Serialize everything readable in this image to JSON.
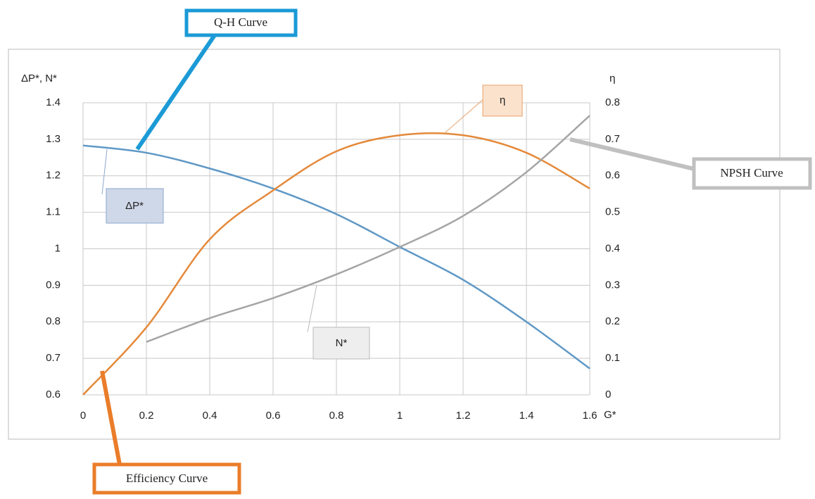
{
  "chart_data": {
    "type": "line",
    "ylabel": "ΔP*, N*",
    "y2label": "η",
    "xlabel": "G*",
    "x": [
      0,
      0.2,
      0.4,
      0.6,
      0.8,
      1.0,
      1.2,
      1.4,
      1.6
    ],
    "series": [
      {
        "name": "ΔP*",
        "color": "#5f98c6",
        "values": [
          1.283,
          1.263,
          1.22,
          1.165,
          1.095,
          1.005,
          0.915,
          0.8,
          0.672
        ]
      },
      {
        "name": "η",
        "color": "#e4893a",
        "axis": "y2",
        "values": [
          0,
          0.185,
          0.426,
          0.56,
          0.667,
          0.711,
          0.711,
          0.663,
          0.565
        ]
      },
      {
        "name": "N*",
        "color": "#a5a5a5",
        "values": [
          null,
          0.745,
          0.81,
          0.865,
          0.93,
          1.005,
          1.09,
          1.21,
          1.365
        ]
      }
    ],
    "xlim": [
      0,
      1.6
    ],
    "xticks": [
      0,
      0.2,
      0.4,
      0.6,
      0.8,
      1,
      1.2,
      1.4,
      1.6
    ],
    "ylim": [
      0.6,
      1.4
    ],
    "yticks": [
      0.6,
      0.7,
      0.8,
      0.9,
      1,
      1.1,
      1.2,
      1.3,
      1.4
    ],
    "y2lim": [
      0,
      0.8
    ],
    "y2ticks": [
      0,
      0.1,
      0.2,
      0.3,
      0.4,
      0.5,
      0.6,
      0.7,
      0.8
    ],
    "grid": true,
    "annotations": [
      "Q-H Curve",
      "Efficiency Curve",
      "NPSH Curve"
    ]
  }
}
